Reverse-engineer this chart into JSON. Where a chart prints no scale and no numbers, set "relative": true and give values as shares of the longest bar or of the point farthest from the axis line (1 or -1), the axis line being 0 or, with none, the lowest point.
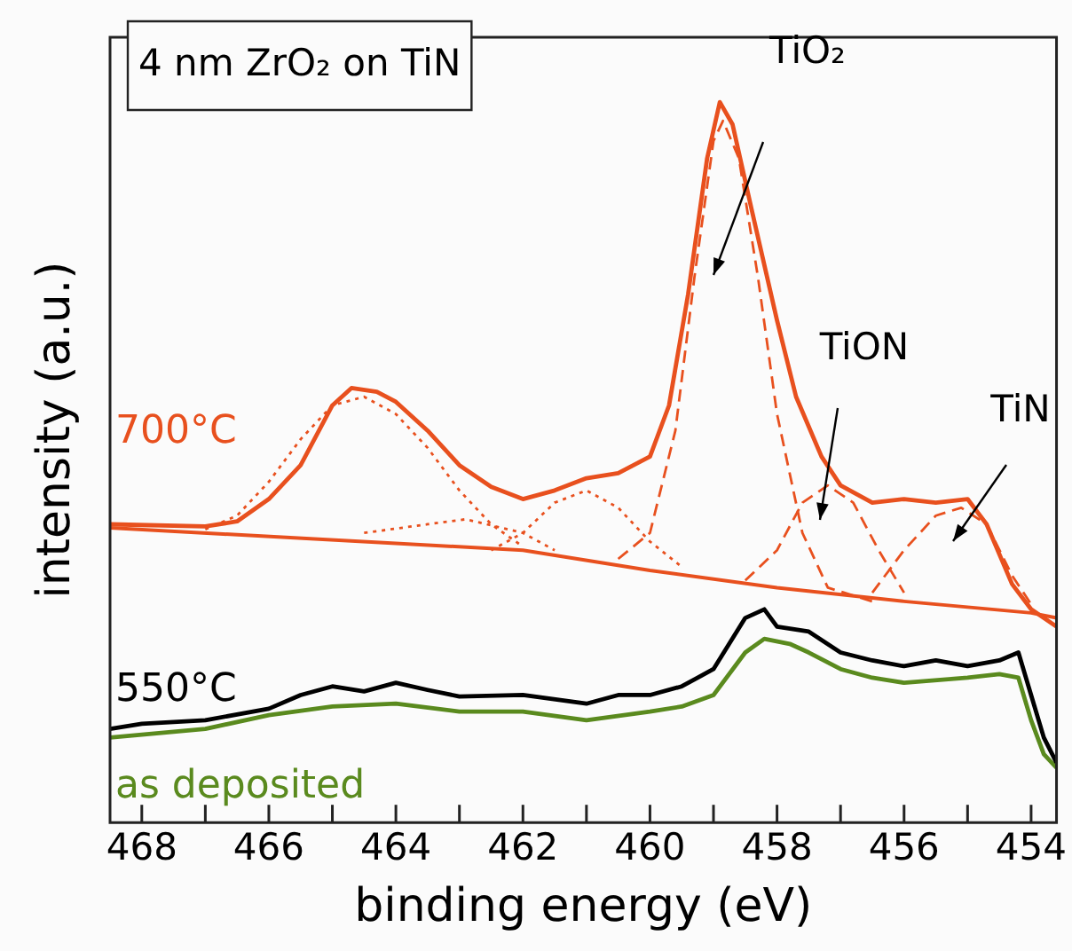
{
  "chart_data": {
    "type": "line",
    "relative": true,
    "title": "4 nm ZrO₂ on TiN",
    "xlabel": "binding energy (eV)",
    "ylabel": "intensity (a.u.)",
    "xlim": [
      468.5,
      453.6
    ],
    "xticks": [
      468,
      {
        "value": 467,
        "label": null
      },
      466,
      {
        "value": 465,
        "label": null
      },
      464,
      {
        "value": 463,
        "label": null
      },
      462,
      {
        "value": 461,
        "label": null
      },
      460,
      {
        "value": 459,
        "label": null
      },
      458,
      {
        "value": 457,
        "label": null
      },
      456,
      {
        "value": 455,
        "label": null
      },
      454
    ],
    "grid": false,
    "legend": false,
    "marker": "none",
    "annotations": [
      "TiO₂",
      "TiON",
      "TiN"
    ],
    "series": [
      {
        "name": "700°C",
        "color": "#e8501e",
        "line_style": "solid",
        "x": [
          468.5,
          467,
          466.5,
          466,
          465.5,
          465,
          464.7,
          464.3,
          464,
          463.5,
          463,
          462.5,
          462,
          461.5,
          461,
          460.5,
          460,
          459.7,
          459.4,
          459.1,
          458.9,
          458.7,
          458.4,
          458,
          457.7,
          457.3,
          457,
          456.5,
          456,
          455.5,
          455,
          454.7,
          454.3,
          454,
          453.6
        ],
        "values": [
          0.414,
          0.411,
          0.418,
          0.449,
          0.496,
          0.579,
          0.603,
          0.598,
          0.584,
          0.544,
          0.496,
          0.466,
          0.449,
          0.461,
          0.478,
          0.485,
          0.508,
          0.579,
          0.733,
          0.922,
          1,
          0.969,
          0.851,
          0.697,
          0.591,
          0.508,
          0.468,
          0.444,
          0.449,
          0.444,
          0.449,
          0.414,
          0.331,
          0.296,
          0.272
        ]
      },
      {
        "color": "#e8501e",
        "line_style": "solid",
        "x": [
          468.5,
          462,
          460,
          458,
          456,
          454,
          453.6
        ],
        "values": [
          0.409,
          0.378,
          0.35,
          0.326,
          0.307,
          0.291,
          0.284
        ]
      },
      {
        "color": "#e8501e",
        "line_style": "dashed",
        "x": [
          460.5,
          460,
          459.6,
          459.3,
          459,
          458.85,
          458.6,
          458.3,
          458,
          457.6,
          457.2,
          456.5
        ],
        "values": [
          0.366,
          0.402,
          0.544,
          0.757,
          0.946,
          0.974,
          0.922,
          0.757,
          0.567,
          0.402,
          0.326,
          0.307
        ]
      },
      {
        "color": "#e8501e",
        "line_style": "dashed",
        "x": [
          458.5,
          458,
          457.6,
          457.2,
          456.8,
          456.4,
          456
        ],
        "values": [
          0.336,
          0.378,
          0.444,
          0.468,
          0.444,
          0.378,
          0.319
        ]
      },
      {
        "color": "#e8501e",
        "line_style": "dashed",
        "x": [
          456.5,
          456,
          455.5,
          455.1,
          454.7,
          454.3,
          454
        ],
        "values": [
          0.319,
          0.378,
          0.426,
          0.437,
          0.414,
          0.343,
          0.303
        ]
      },
      {
        "color": "#e8501e",
        "line_style": "dotted",
        "x": [
          467,
          466.5,
          466,
          465.5,
          465,
          464.5,
          464,
          463.5,
          463,
          462.5,
          462
        ],
        "values": [
          0.407,
          0.426,
          0.473,
          0.532,
          0.579,
          0.591,
          0.567,
          0.52,
          0.461,
          0.414,
          0.383
        ]
      },
      {
        "color": "#e8501e",
        "line_style": "dotted",
        "x": [
          464.5,
          463.5,
          462.9,
          462,
          461.5
        ],
        "values": [
          0.402,
          0.414,
          0.421,
          0.402,
          0.378
        ]
      },
      {
        "color": "#e8501e",
        "line_style": "dotted",
        "x": [
          462.5,
          462,
          461.5,
          461,
          460.5,
          460,
          459.5
        ],
        "values": [
          0.378,
          0.402,
          0.444,
          0.461,
          0.437,
          0.39,
          0.355
        ]
      },
      {
        "name": "550°C",
        "color": "#000000",
        "line_style": "solid",
        "x": [
          468.5,
          468,
          467,
          466,
          465.5,
          465,
          464.5,
          464,
          463.5,
          463,
          462,
          461,
          460.5,
          460,
          459.5,
          459,
          458.5,
          458.2,
          458,
          457.5,
          457,
          456.5,
          456,
          455.5,
          455,
          454.5,
          454.2,
          454,
          453.8,
          453.6
        ],
        "values": [
          0.13,
          0.137,
          0.142,
          0.158,
          0.177,
          0.189,
          0.182,
          0.194,
          0.184,
          0.175,
          0.177,
          0.165,
          0.177,
          0.177,
          0.189,
          0.213,
          0.284,
          0.296,
          0.272,
          0.265,
          0.236,
          0.225,
          0.217,
          0.225,
          0.217,
          0.225,
          0.236,
          0.177,
          0.118,
          0.083
        ]
      },
      {
        "name": "as deposited",
        "color": "#5a8a1e",
        "line_style": "solid",
        "x": [
          468.5,
          467,
          466,
          465,
          464,
          463,
          462,
          461,
          460,
          459.5,
          459,
          458.5,
          458.2,
          457.8,
          457.5,
          457,
          456.5,
          456,
          455,
          454.5,
          454.2,
          454,
          453.8,
          453.6
        ],
        "values": [
          0.118,
          0.13,
          0.149,
          0.161,
          0.165,
          0.154,
          0.154,
          0.142,
          0.154,
          0.161,
          0.177,
          0.236,
          0.255,
          0.248,
          0.236,
          0.213,
          0.201,
          0.194,
          0.201,
          0.206,
          0.201,
          0.142,
          0.095,
          0.076
        ]
      }
    ]
  }
}
